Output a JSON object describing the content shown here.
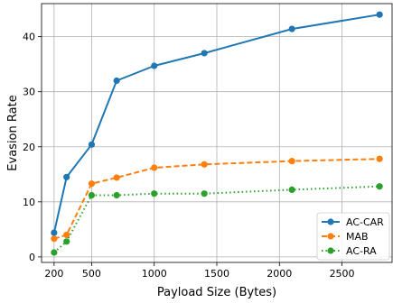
{
  "chart_data": {
    "type": "line",
    "xlabel": "Payload Size (Bytes)",
    "ylabel": "Evasion Rate",
    "xlim": [
      100,
      2900
    ],
    "ylim": [
      -1,
      46
    ],
    "xticks": [
      200,
      500,
      1000,
      1500,
      2000,
      2500
    ],
    "yticks": [
      0,
      10,
      20,
      30,
      40
    ],
    "grid": true,
    "legend_position": "bottom-right",
    "series": [
      {
        "name": "AC-CAR",
        "color": "#1f77b4",
        "linestyle": "solid",
        "x": [
          200,
          300,
          500,
          700,
          1000,
          1400,
          2100,
          2800
        ],
        "y": [
          4.4,
          14.5,
          20.4,
          32.0,
          34.7,
          37.0,
          41.4,
          44.0
        ]
      },
      {
        "name": "MAB",
        "color": "#ff7f0e",
        "linestyle": "dashed",
        "x": [
          200,
          300,
          500,
          700,
          1000,
          1400,
          2100,
          2800
        ],
        "y": [
          3.3,
          4.0,
          13.3,
          14.4,
          16.2,
          16.8,
          17.4,
          17.8
        ]
      },
      {
        "name": "AC-RA",
        "color": "#2ca02c",
        "linestyle": "dotted",
        "x": [
          200,
          300,
          500,
          700,
          1000,
          1400,
          2100,
          2800
        ],
        "y": [
          0.8,
          2.8,
          11.2,
          11.2,
          11.5,
          11.5,
          12.2,
          12.8
        ]
      }
    ]
  }
}
